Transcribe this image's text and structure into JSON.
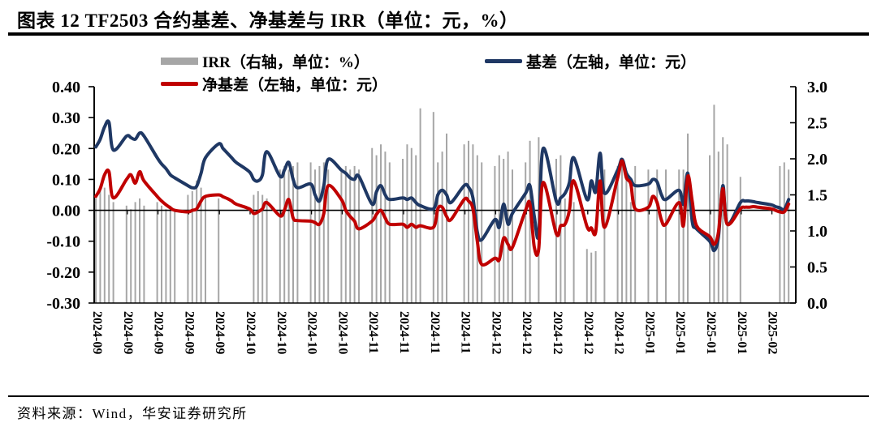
{
  "header": {
    "title": "图表 12 TF2503 合约基差、净基差与 IRR（单位：元，%）"
  },
  "legend": {
    "items": [
      {
        "label": "IRR（右轴，单位：%）",
        "swatch": "bar",
        "color": "#A6A6A6"
      },
      {
        "label": "基差（左轴，单位：元）",
        "swatch": "line",
        "color": "#1F3864"
      },
      {
        "label": "净基差（左轴，单位：元）",
        "swatch": "line",
        "color": "#C00000"
      }
    ]
  },
  "footer": {
    "source": "资料来源：Wind，华安证券研究所"
  },
  "chart_data": {
    "type": "bar+line combo",
    "title": "TF2503 合约基差、净基差与 IRR",
    "left_axis": {
      "unit": "元",
      "min": -0.3,
      "max": 0.4,
      "ticks": [
        "0.40",
        "0.30",
        "0.20",
        "0.10",
        "0.00",
        "-0.10",
        "-0.20",
        "-0.30"
      ]
    },
    "right_axis": {
      "unit": "%",
      "min": 0.0,
      "max": 3.0,
      "ticks": [
        "3.0",
        "2.5",
        "2.0",
        "1.5",
        "1.0",
        "0.5",
        "0.0"
      ]
    },
    "x_week_labels": [
      "2024-09",
      "2024-09",
      "2024-09",
      "2024-09",
      "2024-09",
      "2024-10",
      "2024-10",
      "2024-10",
      "2024-10",
      "2024-11",
      "2024-11",
      "2024-11",
      "2024-11",
      "2024-12",
      "2024-12",
      "2024-12",
      "2024-12",
      "2024-12",
      "2025-01",
      "2025-01",
      "2025-01",
      "2025-01",
      "2025-02"
    ],
    "days_per_week": 5,
    "grid": "off",
    "legend_position": "top",
    "series": [
      {
        "name": "IRR（右轴，单位：%）",
        "type": "bar",
        "axis": "right",
        "color": "#A6A6A6",
        "values": [
          1.45,
          1.55,
          1.6,
          1.5,
          1.4,
          1.35,
          1.3,
          1.4,
          1.45,
          1.35,
          1.4,
          1.35,
          1.3,
          1.35,
          1.3,
          1.5,
          1.55,
          1.7,
          1.6,
          1.5,
          1.45,
          null,
          null,
          null,
          null,
          null,
          1.5,
          1.55,
          1.5,
          1.45,
          1.85,
          1.9,
          1.85,
          1.9,
          1.95,
          1.95,
          1.85,
          1.9,
          1.95,
          1.85,
          1.85,
          1.9,
          1.85,
          1.9,
          1.85,
          2.15,
          2.05,
          2.2,
          2.1,
          1.95,
          2.0,
          2.2,
          2.15,
          2.05,
          2.7,
          2.65,
          1.95,
          2.1,
          2.35,
          null,
          2.2,
          2.25,
          2.2,
          2.05,
          1.95,
          1.9,
          2.05,
          2.0,
          2.1,
          1.85,
          1.95,
          2.25,
          null,
          2.3,
          null,
          2.0,
          2.05,
          1.45,
          null,
          1.4,
          0.75,
          0.7,
          0.72,
          null,
          1.85,
          1.9,
          1.9,
          1.8,
          1.4,
          1.9,
          1.85,
          null,
          1.85,
          null,
          1.85,
          1.85,
          1.85,
          2.35,
          null,
          null,
          2.05,
          2.75,
          2.1,
          2.3,
          2.2,
          1.75,
          null,
          null,
          null,
          null,
          null,
          null,
          1.9,
          1.95,
          1.85
        ]
      },
      {
        "name": "基差（左轴，单位：元）",
        "type": "line",
        "axis": "left",
        "color": "#1F3864",
        "values": [
          0.205,
          0.23,
          0.27,
          0.285,
          0.195,
          0.24,
          0.235,
          0.23,
          0.25,
          0.24,
          0.17,
          0.15,
          0.135,
          0.115,
          0.105,
          0.08,
          0.073,
          0.078,
          0.12,
          0.17,
          0.215,
          0.2,
          0.185,
          0.17,
          0.155,
          0.125,
          0.1,
          0.095,
          0.115,
          0.19,
          0.11,
          0.13,
          0.155,
          0.1,
          0.073,
          0.085,
          0.05,
          0.03,
          0.08,
          0.165,
          0.13,
          0.12,
          0.105,
          0.1,
          0.11,
          0.02,
          0.06,
          0.08,
          0.05,
          0.035,
          0.04,
          0.035,
          0.04,
          0.025,
          0.015,
          0.005,
          0.05,
          0.065,
          0.05,
          0.025,
          0.08,
          0.075,
          0.04,
          -0.07,
          -0.095,
          -0.03,
          -0.055,
          0.02,
          -0.045,
          -0.01,
          0.055,
          0.08,
          -0.02,
          -0.08,
          0.2,
          0.03,
          0.04,
          0.055,
          0.09,
          0.17,
          0.035,
          0.095,
          0.06,
          0.185,
          0.055,
          0.13,
          0.165,
          0.12,
          0.1,
          0.08,
          0.085,
          0.1,
          0.092,
          0.05,
          0.035,
          0.065,
          0.02,
          0.12,
          -0.035,
          -0.06,
          -0.1,
          -0.13,
          -0.085,
          0.08,
          -0.045,
          0.025,
          0.03,
          0.03,
          0.028,
          0.025,
          0.018,
          0.012,
          0.008,
          0.003,
          0.035
        ]
      },
      {
        "name": "净基差（左轴，单位：元）",
        "type": "line",
        "axis": "left",
        "color": "#C00000",
        "values": [
          0.045,
          0.07,
          0.115,
          0.125,
          0.04,
          0.1,
          0.115,
          0.088,
          0.125,
          0.095,
          0.045,
          0.03,
          0.018,
          0.008,
          0.0,
          -0.005,
          0.0,
          0.005,
          0.03,
          0.045,
          0.05,
          0.044,
          0.038,
          0.03,
          0.02,
          0.005,
          -0.01,
          -0.005,
          0.005,
          0.025,
          -0.018,
          0.0,
          0.035,
          -0.025,
          -0.033,
          -0.035,
          -0.04,
          -0.045,
          -0.01,
          0.08,
          0.035,
          0.0,
          -0.02,
          -0.035,
          -0.06,
          -0.035,
          -0.013,
          0.0,
          -0.025,
          -0.045,
          -0.045,
          -0.055,
          -0.045,
          -0.055,
          -0.05,
          -0.055,
          0.005,
          0.01,
          -0.02,
          -0.03,
          0.035,
          0.03,
          0.005,
          -0.1,
          -0.175,
          -0.155,
          -0.16,
          -0.09,
          -0.11,
          -0.12,
          0.0,
          0.02,
          -0.12,
          -0.125,
          0.09,
          -0.075,
          -0.05,
          -0.045,
          0.0,
          0.095,
          -0.052,
          -0.057,
          -0.07,
          0.095,
          -0.055,
          0.105,
          0.16,
          0.105,
          0.085,
          0.005,
          0.01,
          0.045,
          0.025,
          -0.032,
          -0.045,
          0.025,
          -0.05,
          0.11,
          0.03,
          -0.05,
          -0.085,
          -0.11,
          -0.07,
          0.07,
          -0.045,
          0.005,
          0.01,
          0.01,
          0.012,
          0.01,
          0.005,
          0.0,
          -0.005,
          -0.005,
          0.02
        ]
      }
    ]
  }
}
